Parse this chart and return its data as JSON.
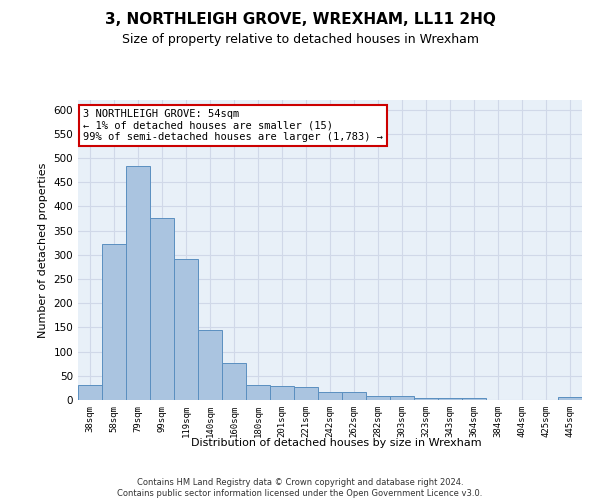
{
  "title": "3, NORTHLEIGH GROVE, WREXHAM, LL11 2HQ",
  "subtitle": "Size of property relative to detached houses in Wrexham",
  "xlabel": "Distribution of detached houses by size in Wrexham",
  "ylabel": "Number of detached properties",
  "footer_line1": "Contains HM Land Registry data © Crown copyright and database right 2024.",
  "footer_line2": "Contains public sector information licensed under the Open Government Licence v3.0.",
  "categories": [
    "38sqm",
    "58sqm",
    "79sqm",
    "99sqm",
    "119sqm",
    "140sqm",
    "160sqm",
    "180sqm",
    "201sqm",
    "221sqm",
    "242sqm",
    "262sqm",
    "282sqm",
    "303sqm",
    "323sqm",
    "343sqm",
    "364sqm",
    "384sqm",
    "404sqm",
    "425sqm",
    "445sqm"
  ],
  "values": [
    32,
    323,
    483,
    376,
    291,
    144,
    76,
    32,
    29,
    27,
    16,
    16,
    8,
    8,
    5,
    5,
    5,
    0,
    0,
    0,
    6
  ],
  "bar_color": "#aac4e0",
  "bar_edge_color": "#5a8fc0",
  "grid_color": "#d0d8e8",
  "background_color": "#e8f0f8",
  "annotation_line1": "3 NORTHLEIGH GROVE: 54sqm",
  "annotation_line2": "← 1% of detached houses are smaller (15)",
  "annotation_line3": "99% of semi-detached houses are larger (1,783) →",
  "annotation_box_color": "#ffffff",
  "annotation_box_edge": "#cc0000",
  "ylim": [
    0,
    620
  ],
  "yticks": [
    0,
    50,
    100,
    150,
    200,
    250,
    300,
    350,
    400,
    450,
    500,
    550,
    600
  ]
}
